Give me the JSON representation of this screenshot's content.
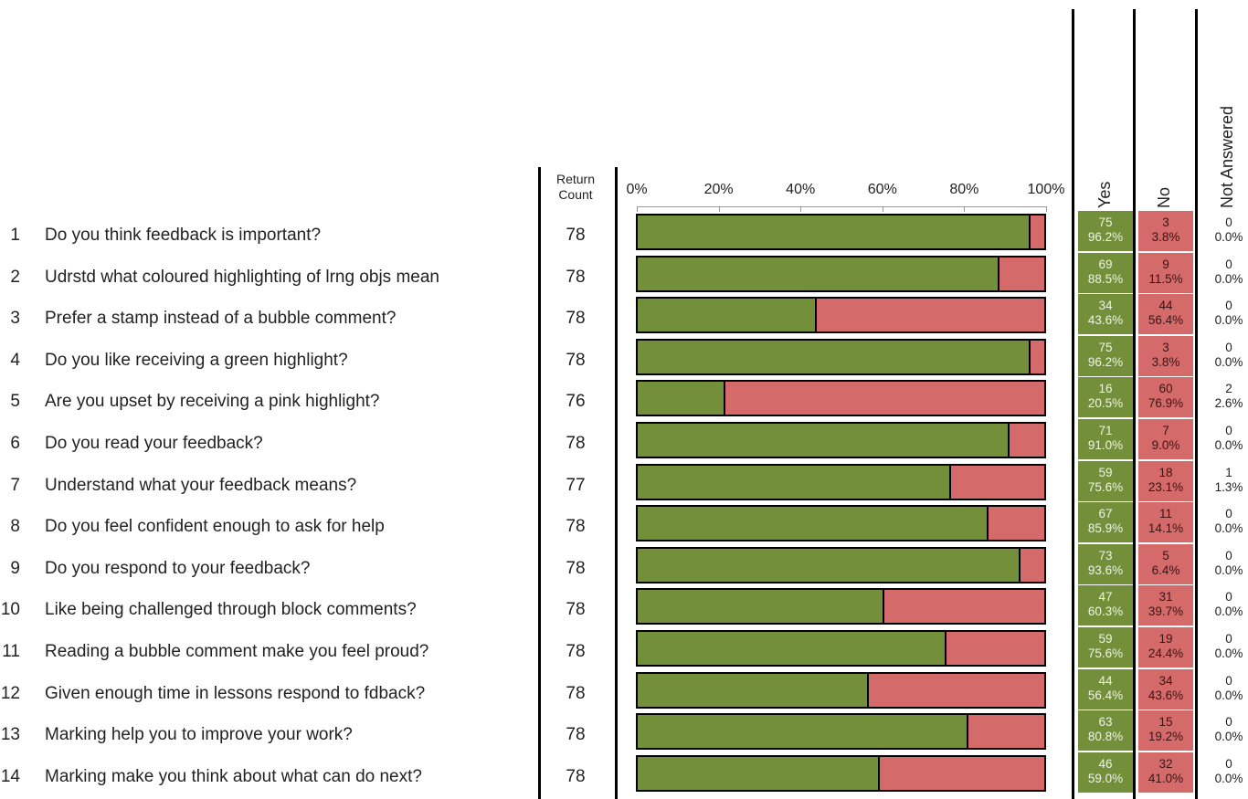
{
  "headers": {
    "return_count": [
      "Return",
      "Count"
    ],
    "yes": "Yes",
    "no": "No",
    "not_answered": "Not Answered"
  },
  "colors": {
    "yes": "#738f3a",
    "no": "#d46a6a",
    "not_answered": "#ffffff"
  },
  "chart_data": {
    "type": "bar",
    "stacked": true,
    "orientation": "horizontal",
    "x_ticks": [
      "0%",
      "20%",
      "40%",
      "60%",
      "80%",
      "100%"
    ],
    "xlim": [
      0,
      100
    ],
    "series": [
      {
        "name": "Yes",
        "color": "#738f3a"
      },
      {
        "name": "No",
        "color": "#d46a6a"
      },
      {
        "name": "Not Answered",
        "color": "#ffffff"
      }
    ],
    "rows": [
      {
        "num": "1",
        "question": "Do you think feedback is important?",
        "count": "78",
        "yes": "75",
        "yes_pct": "96.2%",
        "no": "3",
        "no_pct": "3.8%",
        "na": "0",
        "na_pct": "0.0%",
        "yes_share": 96.2,
        "no_share": 3.8
      },
      {
        "num": "2",
        "question": "Udrstd what coloured highlighting of lrng objs mean",
        "count": "78",
        "yes": "69",
        "yes_pct": "88.5%",
        "no": "9",
        "no_pct": "11.5%",
        "na": "0",
        "na_pct": "0.0%",
        "yes_share": 88.5,
        "no_share": 11.5
      },
      {
        "num": "3",
        "question": "Prefer a stamp instead of a bubble comment?",
        "count": "78",
        "yes": "34",
        "yes_pct": "43.6%",
        "no": "44",
        "no_pct": "56.4%",
        "na": "0",
        "na_pct": "0.0%",
        "yes_share": 43.6,
        "no_share": 56.4
      },
      {
        "num": "4",
        "question": "Do you like receiving a green highlight?",
        "count": "78",
        "yes": "75",
        "yes_pct": "96.2%",
        "no": "3",
        "no_pct": "3.8%",
        "na": "0",
        "na_pct": "0.0%",
        "yes_share": 96.2,
        "no_share": 3.8
      },
      {
        "num": "5",
        "question": "Are you upset by receiving a pink highlight?",
        "count": "76",
        "yes": "16",
        "yes_pct": "20.5%",
        "no": "60",
        "no_pct": "76.9%",
        "na": "2",
        "na_pct": "2.6%",
        "yes_share": 21.05,
        "no_share": 78.95
      },
      {
        "num": "6",
        "question": "Do you read your feedback?",
        "count": "78",
        "yes": "71",
        "yes_pct": "91.0%",
        "no": "7",
        "no_pct": "9.0%",
        "na": "0",
        "na_pct": "0.0%",
        "yes_share": 91.0,
        "no_share": 9.0
      },
      {
        "num": "7",
        "question": "Understand what your feedback means?",
        "count": "77",
        "yes": "59",
        "yes_pct": "75.6%",
        "no": "18",
        "no_pct": "23.1%",
        "na": "1",
        "na_pct": "1.3%",
        "yes_share": 76.6,
        "no_share": 23.4
      },
      {
        "num": "8",
        "question": "Do you feel confident enough to ask for help",
        "count": "78",
        "yes": "67",
        "yes_pct": "85.9%",
        "no": "11",
        "no_pct": "14.1%",
        "na": "0",
        "na_pct": "0.0%",
        "yes_share": 85.9,
        "no_share": 14.1
      },
      {
        "num": "9",
        "question": "Do you respond to your feedback?",
        "count": "78",
        "yes": "73",
        "yes_pct": "93.6%",
        "no": "5",
        "no_pct": "6.4%",
        "na": "0",
        "na_pct": "0.0%",
        "yes_share": 93.6,
        "no_share": 6.4
      },
      {
        "num": "10",
        "question": "Like being challenged through block comments?",
        "count": "78",
        "yes": "47",
        "yes_pct": "60.3%",
        "no": "31",
        "no_pct": "39.7%",
        "na": "0",
        "na_pct": "0.0%",
        "yes_share": 60.3,
        "no_share": 39.7
      },
      {
        "num": "11",
        "question": "Reading a bubble comment make you feel proud?",
        "count": "78",
        "yes": "59",
        "yes_pct": "75.6%",
        "no": "19",
        "no_pct": "24.4%",
        "na": "0",
        "na_pct": "0.0%",
        "yes_share": 75.6,
        "no_share": 24.4
      },
      {
        "num": "12",
        "question": "Given enough time in lessons respond to fdback?",
        "count": "78",
        "yes": "44",
        "yes_pct": "56.4%",
        "no": "34",
        "no_pct": "43.6%",
        "na": "0",
        "na_pct": "0.0%",
        "yes_share": 56.4,
        "no_share": 43.6
      },
      {
        "num": "13",
        "question": "Marking help you to improve your work?",
        "count": "78",
        "yes": "63",
        "yes_pct": "80.8%",
        "no": "15",
        "no_pct": "19.2%",
        "na": "0",
        "na_pct": "0.0%",
        "yes_share": 80.8,
        "no_share": 19.2
      },
      {
        "num": "14",
        "question": "Marking make you think about what can do next?",
        "count": "78",
        "yes": "46",
        "yes_pct": "59.0%",
        "no": "32",
        "no_pct": "41.0%",
        "na": "0",
        "na_pct": "0.0%",
        "yes_share": 59.0,
        "no_share": 41.0
      }
    ]
  }
}
